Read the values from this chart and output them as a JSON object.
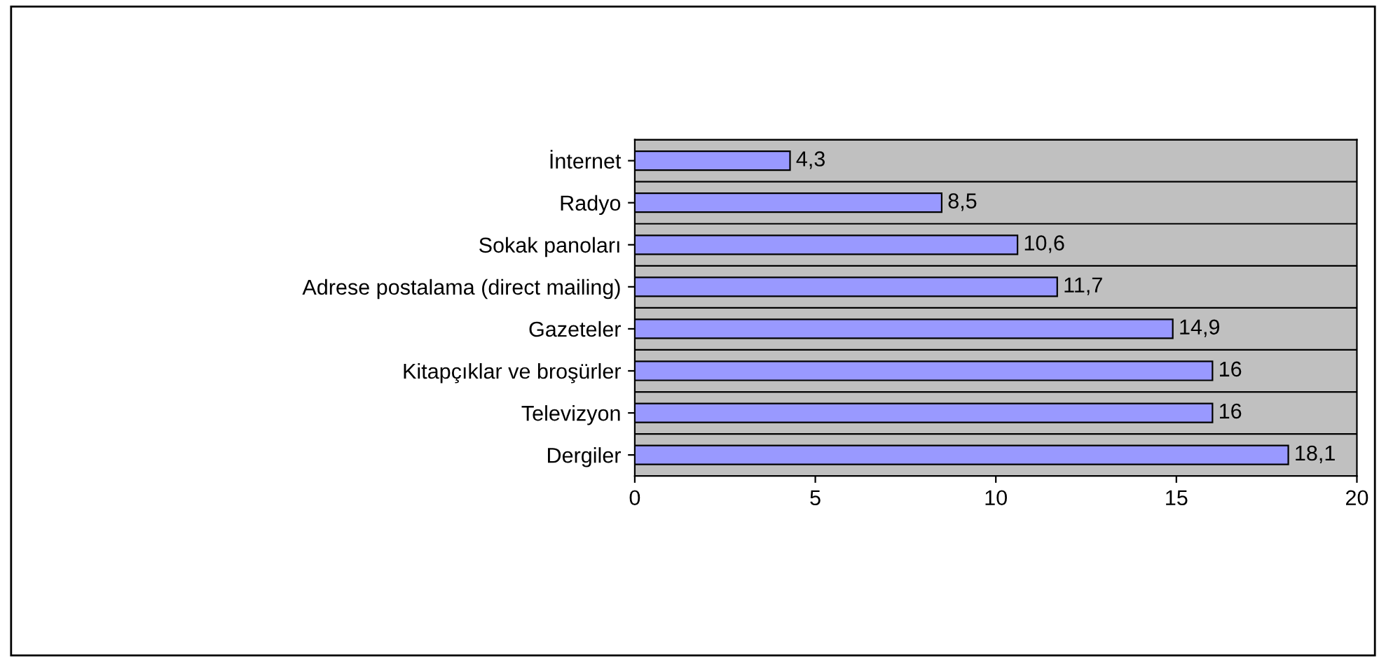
{
  "chart_data": {
    "type": "bar",
    "orientation": "horizontal",
    "categories": [
      "İnternet",
      "Radyo",
      "Sokak panoları",
      "Adrese postalama (direct mailing)",
      "Gazeteler",
      "Kitapçıklar ve broşürler",
      "Televizyon",
      "Dergiler"
    ],
    "values": [
      4.3,
      8.5,
      10.6,
      11.7,
      14.9,
      16,
      16,
      18.1
    ],
    "value_labels": [
      "4,3",
      "8,5",
      "10,6",
      "11,7",
      "14,9",
      "16",
      "16",
      "18,1"
    ],
    "color": "#9999ff",
    "xlim": [
      0,
      20
    ],
    "xticks": [
      0,
      5,
      10,
      15,
      20
    ],
    "grid": "y",
    "legend": false
  }
}
